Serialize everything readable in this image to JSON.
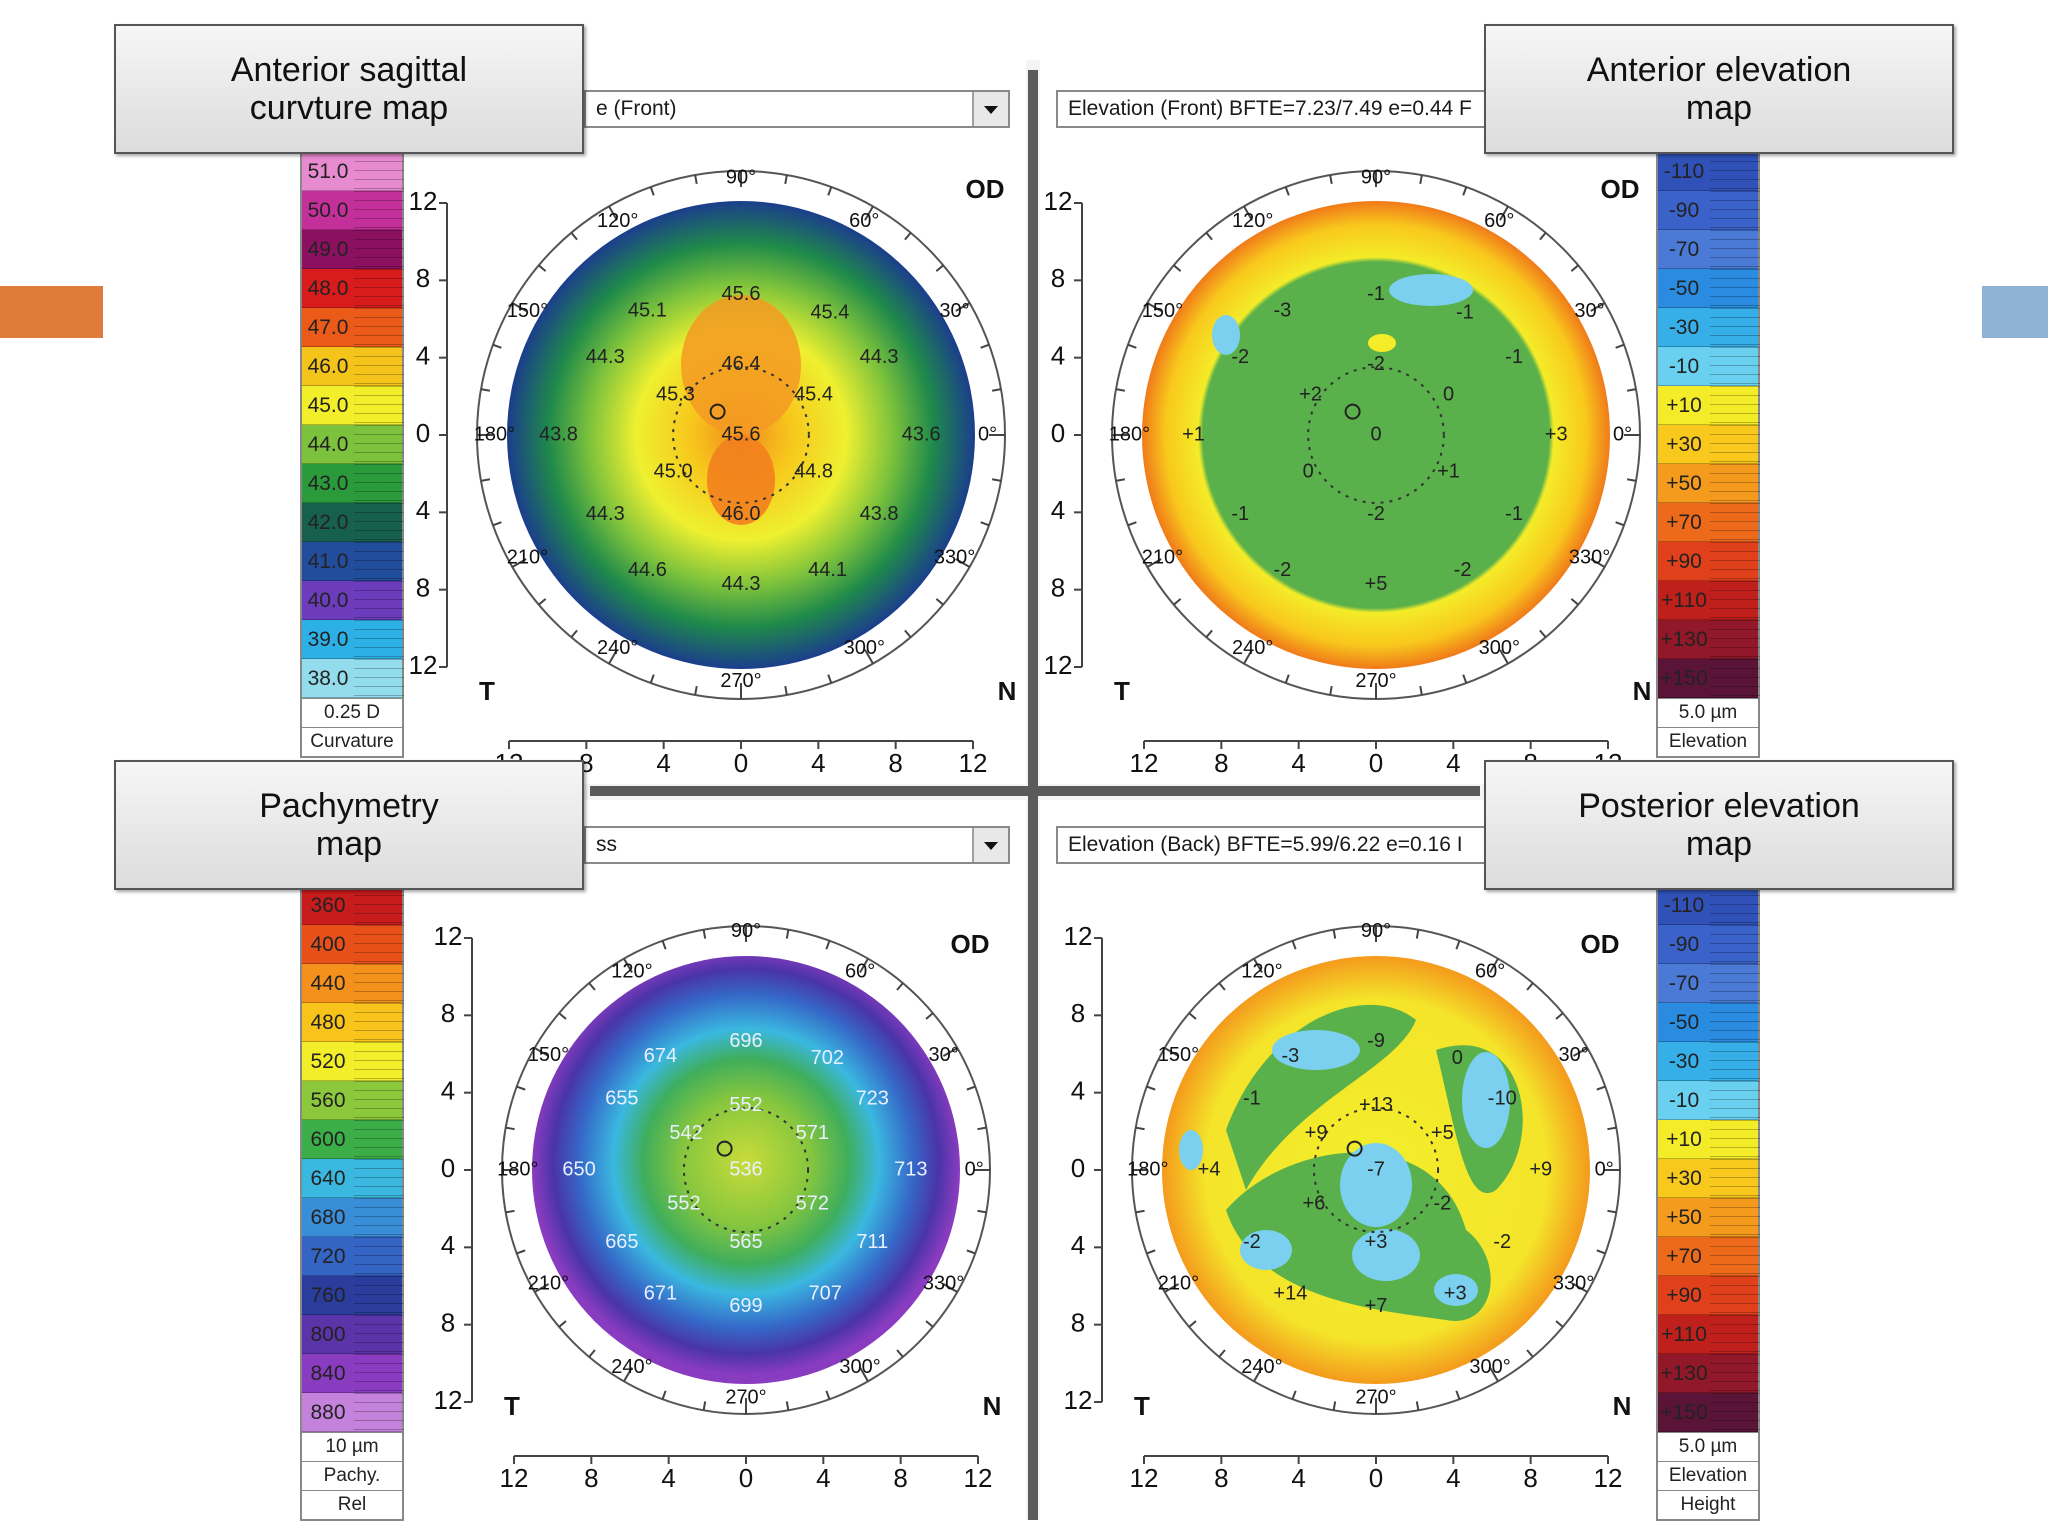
{
  "accents": {
    "left_bar": "#e07b39",
    "right_bar": "#8fb3d4"
  },
  "callouts": {
    "anterior_sagittal": "Anterior sagittal\ncurvture map",
    "anterior_elevation": "Anterior elevation\nmap",
    "pachymetry": "Pachymetry\nmap",
    "posterior_elevation": "Posterior elevation\nmap"
  },
  "dropdowns": {
    "top_left": "e (Front)",
    "top_right": "Elevation (Front)  BFTE=7.23/7.49 e=0.44 F",
    "bottom_left": "ss",
    "bottom_right": "Elevation (Back)  BFTE=5.99/6.22 e=0.16 I"
  },
  "scales": {
    "curvature": {
      "labels": [
        "51.0",
        "50.0",
        "49.0",
        "48.0",
        "47.0",
        "46.0",
        "45.0",
        "44.0",
        "43.0",
        "42.0",
        "41.0",
        "40.0",
        "39.0",
        "38.0"
      ],
      "colors": [
        "#e88ad0",
        "#c4309a",
        "#8c1060",
        "#d81c1c",
        "#ec5a1a",
        "#f5c41a",
        "#f2ee2a",
        "#7cc23c",
        "#2a9a3a",
        "#17604e",
        "#224c9c",
        "#6c3cbc",
        "#2cb0e6",
        "#92dcec"
      ],
      "foot": [
        "0.25 D",
        "Curvature"
      ]
    },
    "anterior_elevation": {
      "labels": [
        "-110",
        "-90",
        "-70",
        "-50",
        "-30",
        "-10",
        "+10",
        "+30",
        "+50",
        "+70",
        "+90",
        "+110",
        "+130",
        "+150"
      ],
      "colors": [
        "#3052b8",
        "#3a62c8",
        "#4a7ad6",
        "#2a8ce0",
        "#36aee8",
        "#6ad0f0",
        "#f4ec28",
        "#f8c81c",
        "#f49a1c",
        "#ec6a1a",
        "#e0401a",
        "#c0201c",
        "#901828",
        "#5a1438"
      ],
      "foot": [
        "5.0 µm",
        "Elevation"
      ]
    },
    "pachymetry": {
      "labels": [
        "360",
        "400",
        "440",
        "480",
        "520",
        "560",
        "600",
        "640",
        "680",
        "720",
        "760",
        "800",
        "840",
        "880"
      ],
      "colors": [
        "#c81c1c",
        "#e8501a",
        "#f4901c",
        "#f8c41c",
        "#f2ee2a",
        "#8cc83c",
        "#3cae48",
        "#3ab8e0",
        "#3a8ed8",
        "#3464c4",
        "#2a3c9c",
        "#5a34a8",
        "#8a3cc0",
        "#c482dc"
      ],
      "foot": [
        "10 µm",
        "Pachy.",
        "Rel"
      ]
    },
    "posterior_elevation": {
      "labels": [
        "-110",
        "-90",
        "-70",
        "-50",
        "-30",
        "-10",
        "+10",
        "+30",
        "+50",
        "+70",
        "+90",
        "+110",
        "+130",
        "+150"
      ],
      "colors": [
        "#3052b8",
        "#3a62c8",
        "#4a7ad6",
        "#2a8ce0",
        "#36aee8",
        "#6ad0f0",
        "#f4ec28",
        "#f8c81c",
        "#f49a1c",
        "#ec6a1a",
        "#e0401a",
        "#c0201c",
        "#901828",
        "#5a1438"
      ],
      "foot": [
        "5.0 µm",
        "Elevation",
        "Height"
      ]
    }
  },
  "map_common": {
    "eye": "OD",
    "temporal": "T",
    "nasal": "N",
    "angles": [
      "90°",
      "60°",
      "30°",
      "0°",
      "330°",
      "300°",
      "270°",
      "240°",
      "210°",
      "180°",
      "150°",
      "120°"
    ],
    "ruler_x": [
      "12",
      "8",
      "4",
      "0",
      "4",
      "8",
      "12"
    ],
    "ruler_y": [
      "12",
      "8",
      "4",
      "0",
      "4",
      "8",
      "12"
    ]
  },
  "maps": {
    "anterior_sagittal": {
      "labels": [
        "45.6",
        "45.1",
        "45.4",
        "44.3",
        "46.4",
        "44.3",
        "45.3",
        "45.4",
        "43.8",
        "45.6",
        "43.6",
        "45.0",
        "44.8",
        "44.3",
        "46.0",
        "43.8",
        "44.6",
        "44.1",
        "44.3"
      ]
    },
    "anterior_elevation": {
      "labels": [
        "-1",
        "-3",
        "-1",
        "-2",
        "-2",
        "-1",
        "+2",
        "0",
        "+1",
        "0",
        "+3",
        "0",
        "+1",
        "-1",
        "-2",
        "-1",
        "-2",
        "-2",
        "+5"
      ]
    },
    "pachymetry": {
      "labels": [
        "696",
        "674",
        "702",
        "655",
        "552",
        "723",
        "542",
        "571",
        "650",
        "536",
        "713",
        "552",
        "572",
        "665",
        "565",
        "711",
        "671",
        "707",
        "699"
      ]
    },
    "posterior_elevation": {
      "labels": [
        "-9",
        "-3",
        "0",
        "-1",
        "+13",
        "-10",
        "+9",
        "+5",
        "+4",
        "-7",
        "+9",
        "+6",
        "-2",
        "-2",
        "+3",
        "-2",
        "+14",
        "+3",
        "+7"
      ]
    }
  }
}
